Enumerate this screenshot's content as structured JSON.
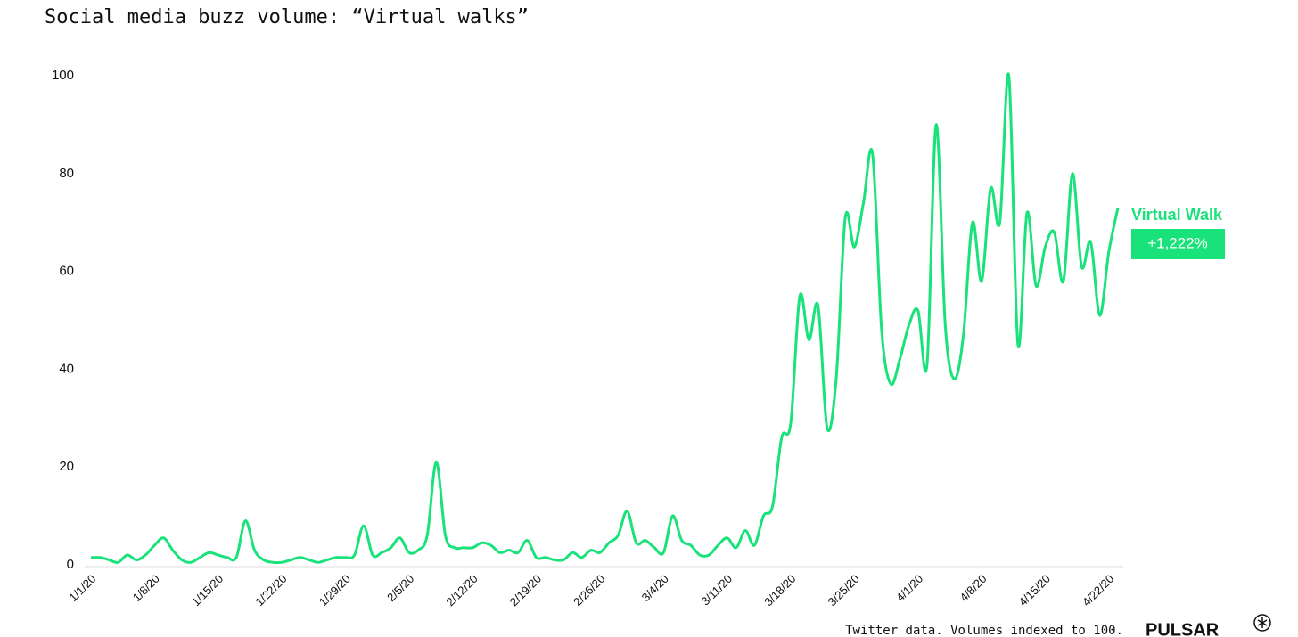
{
  "chart_data": {
    "type": "line",
    "title": "Social media buzz volume: “Virtual walks”",
    "footnote": "Twitter data. Volumes indexed to 100.",
    "brand": "PULSAR",
    "annotation": "+1,222%",
    "categories": [
      "1/1/20",
      null,
      null,
      null,
      null,
      null,
      null,
      "1/8/20",
      null,
      null,
      null,
      null,
      null,
      null,
      "1/15/20",
      null,
      null,
      null,
      null,
      null,
      null,
      "1/22/20",
      null,
      null,
      null,
      null,
      null,
      null,
      "1/29/20",
      null,
      null,
      null,
      null,
      null,
      null,
      "2/5/20",
      null,
      null,
      null,
      null,
      null,
      null,
      "2/12/20",
      null,
      null,
      null,
      null,
      null,
      null,
      "2/19/20",
      null,
      null,
      null,
      null,
      null,
      null,
      "2/26/20",
      null,
      null,
      null,
      null,
      null,
      null,
      "3/4/20",
      null,
      null,
      null,
      null,
      null,
      null,
      "3/11/20",
      null,
      null,
      null,
      null,
      null,
      null,
      "3/18/20",
      null,
      null,
      null,
      null,
      null,
      null,
      "3/25/20",
      null,
      null,
      null,
      null,
      null,
      null,
      "4/1/20",
      null,
      null,
      null,
      null,
      null,
      null,
      "4/8/20",
      null,
      null,
      null,
      null,
      null,
      null,
      "4/15/20",
      null,
      null,
      null,
      null,
      null,
      null,
      "4/22/20",
      null
    ],
    "series": [
      {
        "name": "Virtual Walk",
        "color": "#19e27a",
        "values": [
          1.5,
          1.5,
          1,
          0.5,
          2,
          1,
          2,
          4,
          5.5,
          3,
          1,
          0.5,
          1.5,
          2.5,
          2,
          1.5,
          1.5,
          9,
          3,
          1,
          0.5,
          0.5,
          1,
          1.5,
          1,
          0.5,
          1,
          1.5,
          1.5,
          2,
          8,
          2,
          2.5,
          3.5,
          5.5,
          2.5,
          3,
          6,
          21,
          6,
          3.5,
          3.5,
          3.5,
          4.5,
          4,
          2.5,
          3,
          2.5,
          5,
          1.5,
          1.5,
          1,
          1,
          2.5,
          1.5,
          3,
          2.5,
          4.5,
          6,
          11,
          4.5,
          5,
          3.5,
          2.5,
          10,
          5,
          4,
          2,
          2,
          4,
          5.5,
          3.5,
          7,
          4,
          10,
          12,
          26,
          29,
          55,
          46,
          53,
          28,
          38,
          71,
          65,
          74,
          84,
          48,
          37,
          42,
          49,
          52,
          41,
          90,
          49,
          38,
          47,
          70,
          58,
          77,
          70,
          100,
          45,
          72,
          57,
          65,
          68,
          58,
          80,
          61,
          66,
          51,
          64,
          73
        ]
      }
    ],
    "ylim": [
      0,
      100
    ],
    "yticks": [
      0,
      20,
      40,
      60,
      80,
      100
    ]
  }
}
